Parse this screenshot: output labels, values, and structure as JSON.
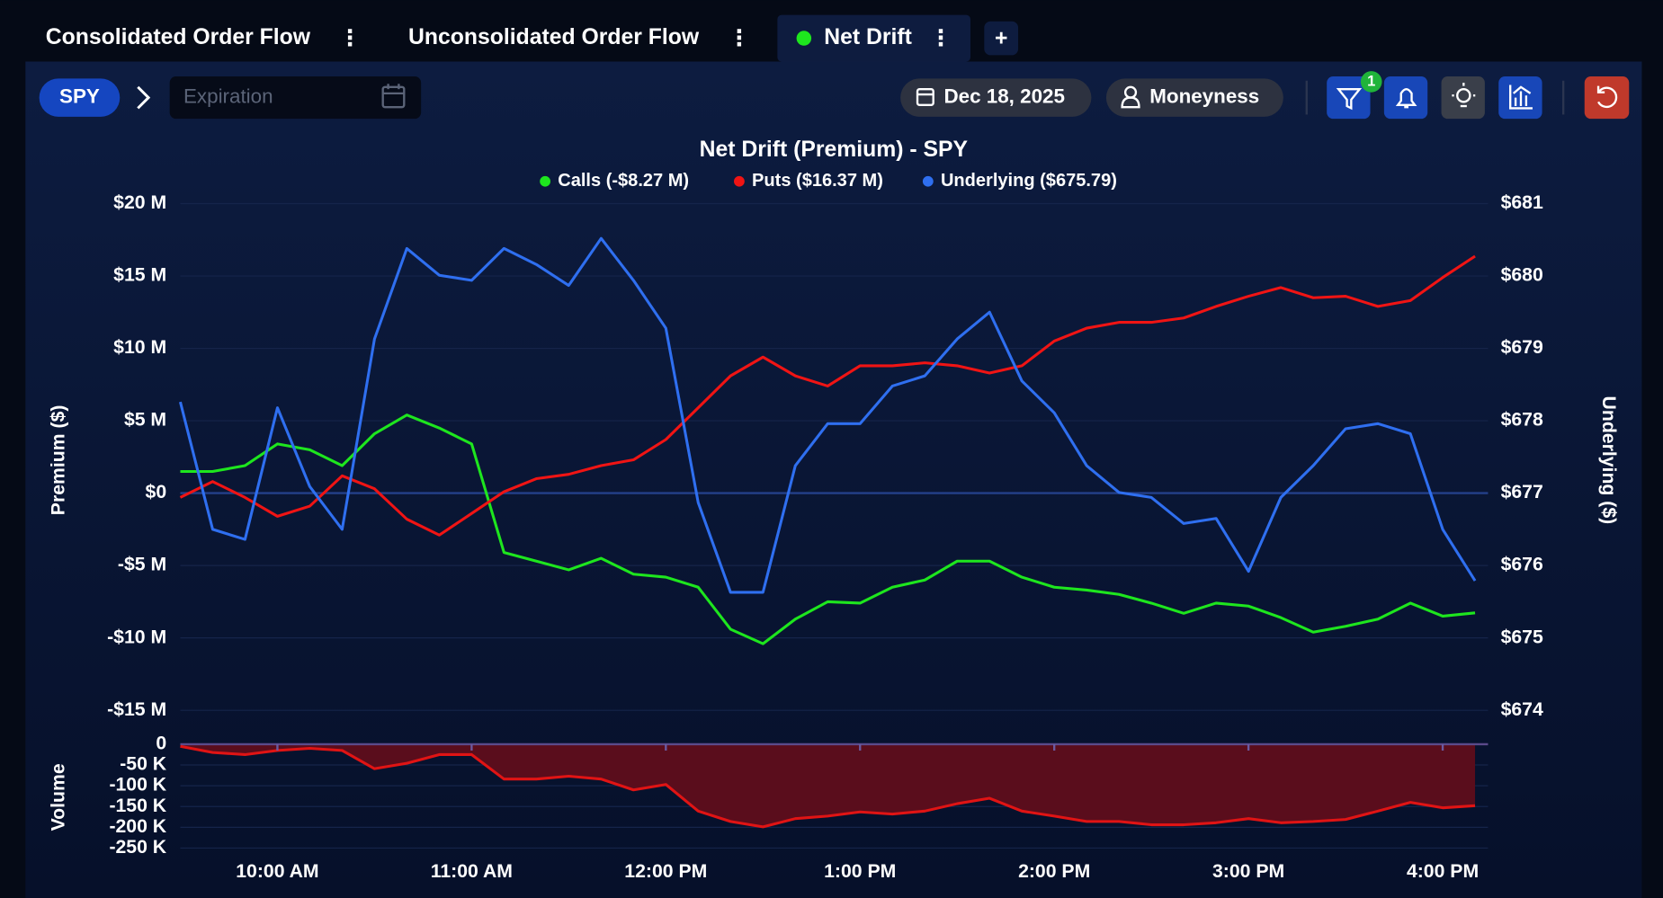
{
  "tabs": [
    "Consolidated Order Flow",
    "Unconsolidated Order Flow",
    "Net Drift"
  ],
  "toolbar": {
    "symbol": "SPY",
    "expiration_placeholder": "Expiration",
    "date": "Dec 18, 2025",
    "moneyness": "Moneyness",
    "filter_badge": "1"
  },
  "chart_data": [
    {
      "type": "line",
      "title": "Net Drift (Premium) - SPY",
      "ylabel": "Premium ($)",
      "y2label": "Underlying ($)",
      "x": [
        570,
        580,
        590,
        600,
        610,
        620,
        630,
        640,
        650,
        660,
        670,
        680,
        690,
        700,
        710,
        720,
        730,
        740,
        750,
        760,
        770,
        780,
        790,
        800,
        810,
        820,
        830,
        840,
        850,
        860,
        870,
        880,
        890,
        900,
        910,
        920,
        930,
        940,
        950,
        960,
        970
      ],
      "xlim": [
        570,
        974
      ],
      "ylim": [
        -15,
        20
      ],
      "yticks": [
        {
          "value": -15,
          "label": "-$15 M"
        },
        {
          "value": -10,
          "label": "-$10 M"
        },
        {
          "value": -5,
          "label": "-$5 M"
        },
        {
          "value": 0,
          "label": "$0"
        },
        {
          "value": 5,
          "label": "$5 M"
        },
        {
          "value": 10,
          "label": "$10 M"
        },
        {
          "value": 15,
          "label": "$15 M"
        },
        {
          "value": 20,
          "label": "$20 M"
        }
      ],
      "y2lim": [
        674,
        681
      ],
      "y2ticks": [
        {
          "value": 674,
          "label": "$674"
        },
        {
          "value": 675,
          "label": "$675"
        },
        {
          "value": 676,
          "label": "$676"
        },
        {
          "value": 677,
          "label": "$677"
        },
        {
          "value": 678,
          "label": "$678"
        },
        {
          "value": 679,
          "label": "$679"
        },
        {
          "value": 680,
          "label": "$680"
        },
        {
          "value": 681,
          "label": "$681"
        }
      ],
      "grid": true,
      "series": [
        {
          "name": "Calls (-$8.27 M)",
          "color": "#1ee61e",
          "values": [
            1.5,
            1.5,
            1.9,
            3.4,
            3.0,
            1.9,
            4.1,
            5.4,
            4.5,
            3.4,
            -4.1,
            -4.7,
            -5.3,
            -4.5,
            -5.6,
            -5.8,
            -6.5,
            -9.4,
            -10.4,
            -8.7,
            -7.5,
            -7.6,
            -6.5,
            -6.0,
            -4.7,
            -4.7,
            -5.8,
            -6.5,
            -6.7,
            -7.0,
            -7.6,
            -8.3,
            -7.6,
            -7.8,
            -8.6,
            -9.6,
            -9.2,
            -8.7,
            -7.6,
            -8.5,
            -8.27
          ]
        },
        {
          "name": "Puts ($16.37 M)",
          "color": "#f01414",
          "values": [
            -0.3,
            0.8,
            -0.3,
            -1.6,
            -0.9,
            1.2,
            0.3,
            -1.8,
            -2.9,
            -1.4,
            0.1,
            1.0,
            1.3,
            1.9,
            2.3,
            3.7,
            5.9,
            8.1,
            9.4,
            8.1,
            7.4,
            8.8,
            8.8,
            9.0,
            8.8,
            8.3,
            8.8,
            10.5,
            11.4,
            11.8,
            11.8,
            12.1,
            12.9,
            13.6,
            14.2,
            13.5,
            13.6,
            12.9,
            13.3,
            14.9,
            16.37
          ]
        },
        {
          "name": "Underlying ($675.79)",
          "color": "#2f6ff0",
          "axis": "y2",
          "values": [
            678.26,
            676.5,
            676.36,
            678.18,
            677.09,
            676.5,
            679.13,
            680.38,
            680.01,
            679.94,
            680.38,
            680.16,
            679.87,
            680.52,
            679.94,
            679.28,
            676.87,
            675.63,
            675.63,
            677.38,
            677.96,
            677.96,
            678.48,
            678.62,
            679.13,
            679.5,
            678.55,
            678.11,
            677.38,
            677.01,
            676.94,
            676.58,
            676.65,
            675.92,
            676.94,
            677.38,
            677.89,
            677.96,
            677.82,
            676.5,
            675.79
          ]
        }
      ]
    },
    {
      "type": "area",
      "ylabel": "Volume",
      "x": [
        570,
        580,
        590,
        600,
        610,
        620,
        630,
        640,
        650,
        660,
        670,
        680,
        690,
        700,
        710,
        720,
        730,
        740,
        750,
        760,
        770,
        780,
        790,
        800,
        810,
        820,
        830,
        840,
        850,
        860,
        870,
        880,
        890,
        900,
        910,
        920,
        930,
        940,
        950,
        960,
        970
      ],
      "xlim": [
        570,
        974
      ],
      "xticks": [
        {
          "value": 600,
          "label": "10:00 AM"
        },
        {
          "value": 660,
          "label": "11:00 AM"
        },
        {
          "value": 720,
          "label": "12:00 PM"
        },
        {
          "value": 780,
          "label": "1:00 PM"
        },
        {
          "value": 840,
          "label": "2:00 PM"
        },
        {
          "value": 900,
          "label": "3:00 PM"
        },
        {
          "value": 960,
          "label": "4:00 PM"
        }
      ],
      "ylim": [
        -250000,
        0
      ],
      "yticks": [
        {
          "value": -250000,
          "label": "-250 K"
        },
        {
          "value": -200000,
          "label": "-200 K"
        },
        {
          "value": -150000,
          "label": "-150 K"
        },
        {
          "value": -100000,
          "label": "-100 K"
        },
        {
          "value": -50000,
          "label": "-50 K"
        },
        0
      ],
      "grid": true,
      "color": "#e01414",
      "values": [
        -5000,
        -20000,
        -25000,
        -15000,
        -10000,
        -15000,
        -59000,
        -46000,
        -25000,
        -25000,
        -84000,
        -84000,
        -77000,
        -84000,
        -110000,
        -97000,
        -161000,
        -186000,
        -199000,
        -179000,
        -173000,
        -163000,
        -168000,
        -161000,
        -143000,
        -130000,
        -161000,
        -173000,
        -186000,
        -186000,
        -194000,
        -194000,
        -189000,
        -179000,
        -189000,
        -186000,
        -181000,
        -161000,
        -140000,
        -153000,
        -148000
      ]
    }
  ]
}
